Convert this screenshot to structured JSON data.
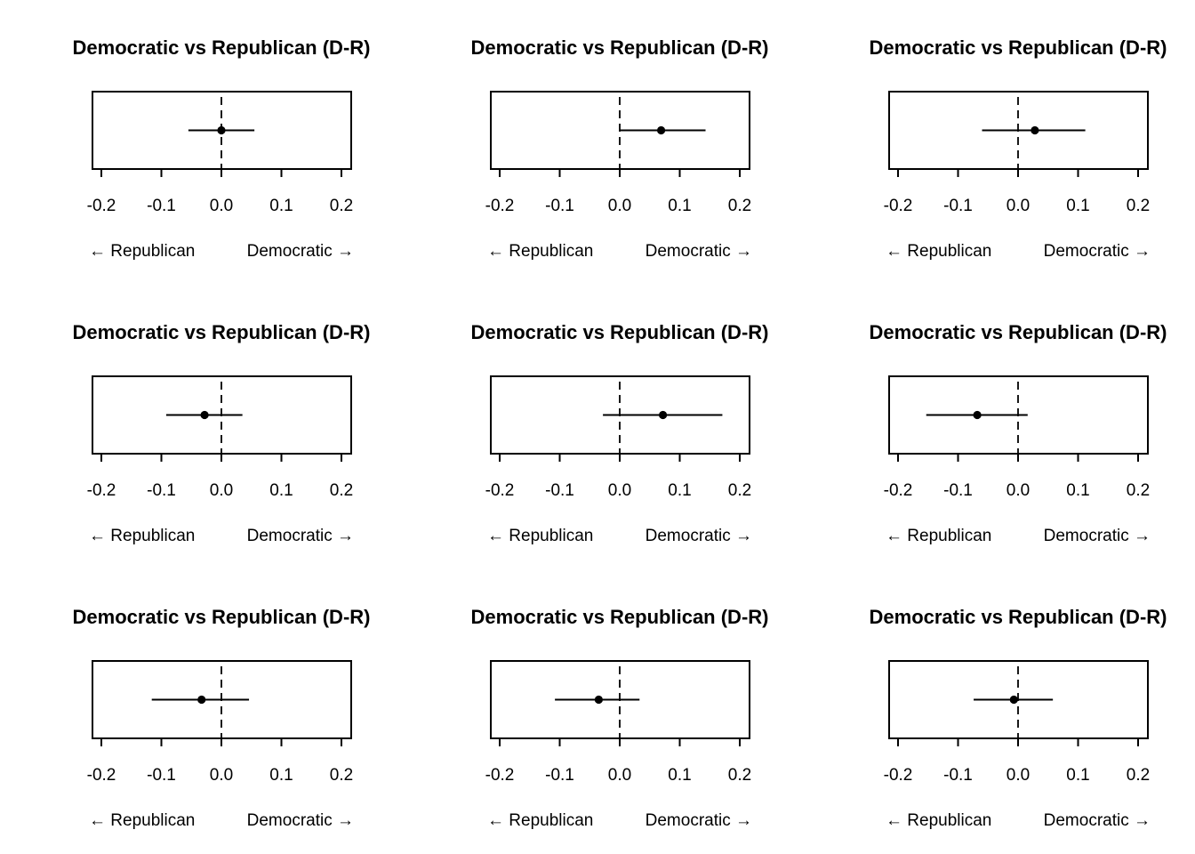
{
  "chart_data": [
    {
      "type": "scatter",
      "title": "Democratic vs Republican (D-R)",
      "xlim": [
        -0.22,
        0.22
      ],
      "ticks": [
        -0.2,
        -0.1,
        0.0,
        0.1,
        0.2
      ],
      "tick_labels": [
        "-0.2",
        "-0.1",
        "0.0",
        "0.1",
        "0.2"
      ],
      "left_label": "← Republican",
      "right_label": "Democratic →",
      "reference_line": 0.0,
      "estimate": 0.0,
      "ci": [
        -0.055,
        0.055
      ]
    },
    {
      "type": "scatter",
      "title": "Democratic vs Republican (D-R)",
      "xlim": [
        -0.22,
        0.22
      ],
      "ticks": [
        -0.2,
        -0.1,
        0.0,
        0.1,
        0.2
      ],
      "tick_labels": [
        "-0.2",
        "-0.1",
        "0.0",
        "0.1",
        "0.2"
      ],
      "left_label": "← Republican",
      "right_label": "Democratic →",
      "reference_line": 0.0,
      "estimate": 0.069,
      "ci": [
        0.0,
        0.143
      ]
    },
    {
      "type": "scatter",
      "title": "Democratic vs Republican (D-R)",
      "xlim": [
        -0.22,
        0.22
      ],
      "ticks": [
        -0.2,
        -0.1,
        0.0,
        0.1,
        0.2
      ],
      "tick_labels": [
        "-0.2",
        "-0.1",
        "0.0",
        "0.1",
        "0.2"
      ],
      "left_label": "← Republican",
      "right_label": "Democratic →",
      "reference_line": 0.0,
      "estimate": 0.028,
      "ci": [
        -0.06,
        0.112
      ]
    },
    {
      "type": "scatter",
      "title": "Democratic vs Republican (D-R)",
      "xlim": [
        -0.22,
        0.22
      ],
      "ticks": [
        -0.2,
        -0.1,
        0.0,
        0.1,
        0.2
      ],
      "tick_labels": [
        "-0.2",
        "-0.1",
        "0.0",
        "0.1",
        "0.2"
      ],
      "left_label": "← Republican",
      "right_label": "Democratic →",
      "reference_line": 0.0,
      "estimate": -0.028,
      "ci": [
        -0.092,
        0.035
      ]
    },
    {
      "type": "scatter",
      "title": "Democratic vs Republican (D-R)",
      "xlim": [
        -0.22,
        0.22
      ],
      "ticks": [
        -0.2,
        -0.1,
        0.0,
        0.1,
        0.2
      ],
      "tick_labels": [
        "-0.2",
        "-0.1",
        "0.0",
        "0.1",
        "0.2"
      ],
      "left_label": "← Republican",
      "right_label": "Democratic →",
      "reference_line": 0.0,
      "estimate": 0.072,
      "ci": [
        -0.028,
        0.171
      ]
    },
    {
      "type": "scatter",
      "title": "Democratic vs Republican (D-R)",
      "xlim": [
        -0.22,
        0.22
      ],
      "ticks": [
        -0.2,
        -0.1,
        0.0,
        0.1,
        0.2
      ],
      "tick_labels": [
        "-0.2",
        "-0.1",
        "0.0",
        "0.1",
        "0.2"
      ],
      "left_label": "← Republican",
      "right_label": "Democratic →",
      "reference_line": 0.0,
      "estimate": -0.068,
      "ci": [
        -0.153,
        0.016
      ]
    },
    {
      "type": "scatter",
      "title": "Democratic vs Republican (D-R)",
      "xlim": [
        -0.22,
        0.22
      ],
      "ticks": [
        -0.2,
        -0.1,
        0.0,
        0.1,
        0.2
      ],
      "tick_labels": [
        "-0.2",
        "-0.1",
        "0.0",
        "0.1",
        "0.2"
      ],
      "left_label": "← Republican",
      "right_label": "Democratic →",
      "reference_line": 0.0,
      "estimate": -0.033,
      "ci": [
        -0.116,
        0.046
      ]
    },
    {
      "type": "scatter",
      "title": "Democratic vs Republican (D-R)",
      "xlim": [
        -0.22,
        0.22
      ],
      "ticks": [
        -0.2,
        -0.1,
        0.0,
        0.1,
        0.2
      ],
      "tick_labels": [
        "-0.2",
        "-0.1",
        "0.0",
        "0.1",
        "0.2"
      ],
      "left_label": "← Republican",
      "right_label": "Democratic →",
      "reference_line": 0.0,
      "estimate": -0.035,
      "ci": [
        -0.108,
        0.033
      ]
    },
    {
      "type": "scatter",
      "title": "Democratic vs Republican (D-R)",
      "xlim": [
        -0.22,
        0.22
      ],
      "ticks": [
        -0.2,
        -0.1,
        0.0,
        0.1,
        0.2
      ],
      "tick_labels": [
        "-0.2",
        "-0.1",
        "0.0",
        "0.1",
        "0.2"
      ],
      "left_label": "← Republican",
      "right_label": "Democratic →",
      "reference_line": 0.0,
      "estimate": -0.007,
      "ci": [
        -0.074,
        0.058
      ]
    }
  ],
  "colors": {
    "ink": "#000000",
    "background": "#ffffff"
  }
}
